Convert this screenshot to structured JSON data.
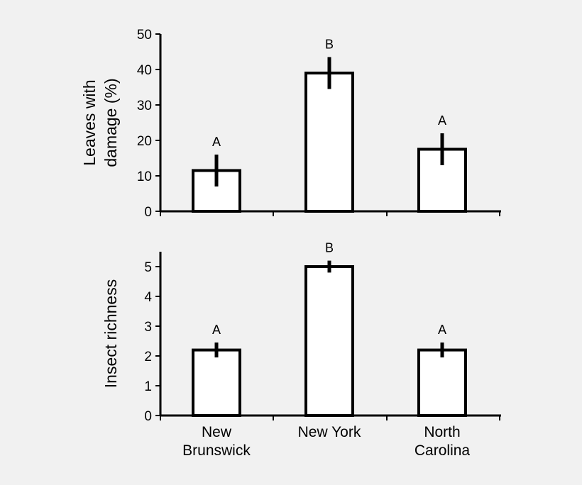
{
  "chart_data": [
    {
      "type": "bar",
      "categories": [
        "New Brunswick",
        "New York",
        "North Carolina"
      ],
      "values": [
        11.5,
        39,
        17.5
      ],
      "error": [
        4.5,
        4.5,
        4.5
      ],
      "significance": [
        "A",
        "B",
        "A"
      ],
      "ylabel_lines": [
        "Leaves with",
        "damage (%)"
      ],
      "ylim": [
        0,
        50
      ],
      "yticks": [
        "0",
        "10",
        "20",
        "30",
        "40",
        "50"
      ],
      "grid": false
    },
    {
      "type": "bar",
      "categories": [
        "New Brunswick",
        "New York",
        "North Carolina"
      ],
      "values": [
        2.2,
        5.0,
        2.2
      ],
      "error": [
        0.25,
        0.2,
        0.25
      ],
      "significance": [
        "A",
        "B",
        "A"
      ],
      "ylabel_lines": [
        "Insect richness"
      ],
      "ylim": [
        0,
        5.5
      ],
      "yticks": [
        "0",
        "1",
        "2",
        "3",
        "4",
        "5"
      ],
      "grid": false
    }
  ],
  "x_labels": [
    [
      "New",
      "Brunswick"
    ],
    [
      "New York"
    ],
    [
      "North",
      "Carolina"
    ]
  ]
}
